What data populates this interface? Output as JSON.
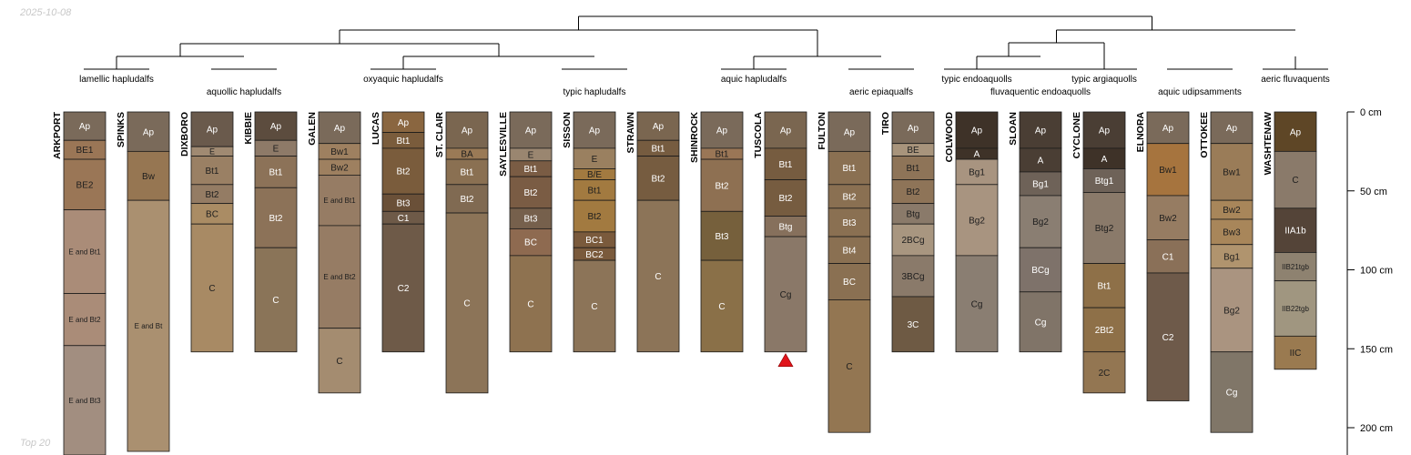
{
  "date_stamp": "2025-10-08",
  "corner_label": "Top 20",
  "axis": {
    "ticks": [
      {
        "depth": 0,
        "label": "0 cm"
      },
      {
        "depth": 50,
        "label": "50 cm"
      },
      {
        "depth": 100,
        "label": "100 cm"
      },
      {
        "depth": 150,
        "label": "150 cm"
      },
      {
        "depth": 200,
        "label": "200 cm"
      }
    ]
  },
  "groups": [
    {
      "label": "lamellic hapludalfs",
      "row": 1,
      "members": [
        "ARKPORT",
        "SPINKS"
      ]
    },
    {
      "label": "aquollic hapludalfs",
      "row": 2,
      "members": [
        "DIXBORO",
        "KIBBIE"
      ]
    },
    {
      "label": "oxyaquic hapludalfs",
      "row": 1,
      "members": [
        "GALEN",
        "LUCAS",
        "ST. CLAIR"
      ]
    },
    {
      "label": "typic hapludalfs",
      "row": 2,
      "members": [
        "SAYLESVILLE",
        "SISSON",
        "STRAWN"
      ]
    },
    {
      "label": "aquic hapludalfs",
      "row": 1,
      "members": [
        "SHINROCK",
        "TUSCOLA"
      ]
    },
    {
      "label": "aeric epiaqualfs",
      "row": 2,
      "members": [
        "FULTON",
        "TIRO"
      ]
    },
    {
      "label": "typic endoaquolls",
      "row": 1,
      "members": [
        "COLWOOD"
      ]
    },
    {
      "label": "fluvaquentic endoaquolls",
      "row": 2,
      "members": [
        "SLOAN"
      ]
    },
    {
      "label": "typic argiaquolls",
      "row": 1,
      "members": [
        "CYCLONE"
      ]
    },
    {
      "label": "aquic udipsamments",
      "row": 2,
      "members": [
        "ELNORA",
        "OTTOKEE"
      ]
    },
    {
      "label": "aeric fluvaquents",
      "row": 1,
      "members": [
        "WASHTENAW"
      ]
    }
  ],
  "profiles": [
    {
      "name": "ARKPORT",
      "horizons": [
        {
          "name": "Ap",
          "top": 0,
          "bottom": 18,
          "color": "#7a6a5a"
        },
        {
          "name": "BE1",
          "top": 18,
          "bottom": 30,
          "color": "#9a7656"
        },
        {
          "name": "BE2",
          "top": 30,
          "bottom": 62,
          "color": "#9a7656"
        },
        {
          "name": "E and Bt1",
          "top": 62,
          "bottom": 115,
          "color": "#aa8c78"
        },
        {
          "name": "E and Bt2",
          "top": 115,
          "bottom": 148,
          "color": "#aa8c78"
        },
        {
          "name": "E and Bt3",
          "top": 148,
          "bottom": 220,
          "color": "#a28e80"
        }
      ]
    },
    {
      "name": "SPINKS",
      "horizons": [
        {
          "name": "Ap",
          "top": 0,
          "bottom": 25,
          "color": "#7a6a5a"
        },
        {
          "name": "Bw",
          "top": 25,
          "bottom": 56,
          "color": "#967652"
        },
        {
          "name": "E and Bt",
          "top": 56,
          "bottom": 215,
          "color": "#aa9070"
        }
      ]
    },
    {
      "name": "DIXBORO",
      "horizons": [
        {
          "name": "Ap",
          "top": 0,
          "bottom": 22,
          "color": "#6a5a4c"
        },
        {
          "name": "E",
          "top": 22,
          "bottom": 28,
          "color": "#a08a72"
        },
        {
          "name": "Bt1",
          "top": 28,
          "bottom": 46,
          "color": "#9a8064"
        },
        {
          "name": "Bt2",
          "top": 46,
          "bottom": 58,
          "color": "#947c64"
        },
        {
          "name": "BC",
          "top": 58,
          "bottom": 71,
          "color": "#aa8c64"
        },
        {
          "name": "C",
          "top": 71,
          "bottom": 152,
          "color": "#a88a64"
        }
      ]
    },
    {
      "name": "KIBBIE",
      "horizons": [
        {
          "name": "Ap",
          "top": 0,
          "bottom": 18,
          "color": "#5c4c3e"
        },
        {
          "name": "E",
          "top": 18,
          "bottom": 28,
          "color": "#8e7a68"
        },
        {
          "name": "Bt1",
          "top": 28,
          "bottom": 48,
          "color": "#8c7258"
        },
        {
          "name": "Bt2",
          "top": 48,
          "bottom": 86,
          "color": "#8c7258"
        },
        {
          "name": "C",
          "top": 86,
          "bottom": 152,
          "color": "#8a7458"
        }
      ]
    },
    {
      "name": "GALEN",
      "horizons": [
        {
          "name": "Ap",
          "top": 0,
          "bottom": 20,
          "color": "#7a6a5a"
        },
        {
          "name": "Bw1",
          "top": 20,
          "bottom": 30,
          "color": "#9e8060"
        },
        {
          "name": "Bw2",
          "top": 30,
          "bottom": 40,
          "color": "#9e8060"
        },
        {
          "name": "E and Bt1",
          "top": 40,
          "bottom": 72,
          "color": "#967c64"
        },
        {
          "name": "E and Bt2",
          "top": 72,
          "bottom": 137,
          "color": "#967c64"
        },
        {
          "name": "C",
          "top": 137,
          "bottom": 178,
          "color": "#a48c70"
        }
      ]
    },
    {
      "name": "LUCAS",
      "horizons": [
        {
          "name": "Ap",
          "top": 0,
          "bottom": 13,
          "color": "#8a6640"
        },
        {
          "name": "Bt1",
          "top": 13,
          "bottom": 23,
          "color": "#7a5c3c"
        },
        {
          "name": "Bt2",
          "top": 23,
          "bottom": 52,
          "color": "#7a5c3c"
        },
        {
          "name": "Bt3",
          "top": 52,
          "bottom": 63,
          "color": "#6a5038"
        },
        {
          "name": "C1",
          "top": 63,
          "bottom": 71,
          "color": "#6e5a48"
        },
        {
          "name": "C2",
          "top": 71,
          "bottom": 152,
          "color": "#6e5a48"
        }
      ]
    },
    {
      "name": "ST. CLAIR",
      "horizons": [
        {
          "name": "Ap",
          "top": 0,
          "bottom": 23,
          "color": "#7a6650"
        },
        {
          "name": "BA",
          "top": 23,
          "bottom": 30,
          "color": "#9a7a56"
        },
        {
          "name": "Bt1",
          "top": 30,
          "bottom": 46,
          "color": "#8a7052"
        },
        {
          "name": "Bt2",
          "top": 46,
          "bottom": 64,
          "color": "#806a52"
        },
        {
          "name": "C",
          "top": 64,
          "bottom": 178,
          "color": "#8c7458"
        }
      ]
    },
    {
      "name": "SAYLESVILLE",
      "horizons": [
        {
          "name": "Ap",
          "top": 0,
          "bottom": 23,
          "color": "#7a6a5a"
        },
        {
          "name": "E",
          "top": 23,
          "bottom": 31,
          "color": "#9a8670"
        },
        {
          "name": "Bt1",
          "top": 31,
          "bottom": 41,
          "color": "#7a5c44"
        },
        {
          "name": "Bt2",
          "top": 41,
          "bottom": 61,
          "color": "#7a5c44"
        },
        {
          "name": "Bt3",
          "top": 61,
          "bottom": 74,
          "color": "#76604c"
        },
        {
          "name": "BC",
          "top": 74,
          "bottom": 91,
          "color": "#8e6a50"
        },
        {
          "name": "C",
          "top": 91,
          "bottom": 152,
          "color": "#8e7250"
        }
      ]
    },
    {
      "name": "SISSON",
      "horizons": [
        {
          "name": "Ap",
          "top": 0,
          "bottom": 23,
          "color": "#7a6a5a"
        },
        {
          "name": "E",
          "top": 23,
          "bottom": 36,
          "color": "#9a8060"
        },
        {
          "name": "B/E",
          "top": 36,
          "bottom": 43,
          "color": "#a27a40"
        },
        {
          "name": "Bt1",
          "top": 43,
          "bottom": 56,
          "color": "#a27a40"
        },
        {
          "name": "Bt2",
          "top": 56,
          "bottom": 76,
          "color": "#a27a40"
        },
        {
          "name": "BC1",
          "top": 76,
          "bottom": 86,
          "color": "#7a5a3c"
        },
        {
          "name": "BC2",
          "top": 86,
          "bottom": 94,
          "color": "#7a5a3c"
        },
        {
          "name": "C",
          "top": 94,
          "bottom": 152,
          "color": "#8c7458"
        }
      ]
    },
    {
      "name": "STRAWN",
      "horizons": [
        {
          "name": "Ap",
          "top": 0,
          "bottom": 18,
          "color": "#7a6650"
        },
        {
          "name": "Bt1",
          "top": 18,
          "bottom": 28,
          "color": "#765c40"
        },
        {
          "name": "Bt2",
          "top": 28,
          "bottom": 56,
          "color": "#765c40"
        },
        {
          "name": "C",
          "top": 56,
          "bottom": 152,
          "color": "#8c7458"
        }
      ]
    },
    {
      "name": "SHINROCK",
      "horizons": [
        {
          "name": "Ap",
          "top": 0,
          "bottom": 23,
          "color": "#7a6a5a"
        },
        {
          "name": "Bt1",
          "top": 23,
          "bottom": 30,
          "color": "#9a7656"
        },
        {
          "name": "Bt2",
          "top": 30,
          "bottom": 63,
          "color": "#8e7052"
        },
        {
          "name": "Bt3",
          "top": 63,
          "bottom": 94,
          "color": "#76603c"
        },
        {
          "name": "C",
          "top": 94,
          "bottom": 152,
          "color": "#8a7048"
        }
      ]
    },
    {
      "name": "TUSCOLA",
      "horizons": [
        {
          "name": "Ap",
          "top": 0,
          "bottom": 23,
          "color": "#7a6650"
        },
        {
          "name": "Bt1",
          "top": 23,
          "bottom": 43,
          "color": "#765c40"
        },
        {
          "name": "Bt2",
          "top": 43,
          "bottom": 66,
          "color": "#765c40"
        },
        {
          "name": "Btg",
          "top": 66,
          "bottom": 79,
          "color": "#86705c"
        },
        {
          "name": "Cg",
          "top": 79,
          "bottom": 152,
          "color": "#8a7868"
        }
      ]
    },
    {
      "name": "FULTON",
      "horizons": [
        {
          "name": "Ap",
          "top": 0,
          "bottom": 25,
          "color": "#7a6a5a"
        },
        {
          "name": "Bt1",
          "top": 25,
          "bottom": 46,
          "color": "#8a7052"
        },
        {
          "name": "Bt2",
          "top": 46,
          "bottom": 61,
          "color": "#8a7052"
        },
        {
          "name": "Bt3",
          "top": 61,
          "bottom": 79,
          "color": "#8a7052"
        },
        {
          "name": "Bt4",
          "top": 79,
          "bottom": 96,
          "color": "#8a7052"
        },
        {
          "name": "BC",
          "top": 96,
          "bottom": 119,
          "color": "#8a7052"
        },
        {
          "name": "C",
          "top": 119,
          "bottom": 203,
          "color": "#937652"
        }
      ]
    },
    {
      "name": "TIRO",
      "horizons": [
        {
          "name": "Ap",
          "top": 0,
          "bottom": 20,
          "color": "#7a6a5a"
        },
        {
          "name": "BE",
          "top": 20,
          "bottom": 28,
          "color": "#a8947c"
        },
        {
          "name": "Bt1",
          "top": 28,
          "bottom": 43,
          "color": "#8e7458"
        },
        {
          "name": "Bt2",
          "top": 43,
          "bottom": 58,
          "color": "#8e7458"
        },
        {
          "name": "Btg",
          "top": 58,
          "bottom": 71,
          "color": "#8a7a6a"
        },
        {
          "name": "2BCg",
          "top": 71,
          "bottom": 91,
          "color": "#a89680"
        },
        {
          "name": "3BCg",
          "top": 91,
          "bottom": 117,
          "color": "#8a7a6a"
        },
        {
          "name": "3C",
          "top": 117,
          "bottom": 152,
          "color": "#6e5a44"
        }
      ]
    },
    {
      "name": "COLWOOD",
      "horizons": [
        {
          "name": "Ap",
          "top": 0,
          "bottom": 23,
          "color": "#3e3228"
        },
        {
          "name": "A",
          "top": 23,
          "bottom": 30,
          "color": "#3e3228"
        },
        {
          "name": "Bg1",
          "top": 30,
          "bottom": 46,
          "color": "#a89480"
        },
        {
          "name": "Bg2",
          "top": 46,
          "bottom": 91,
          "color": "#a89480"
        },
        {
          "name": "Cg",
          "top": 91,
          "bottom": 152,
          "color": "#8a7e72"
        }
      ]
    },
    {
      "name": "SLOAN",
      "horizons": [
        {
          "name": "Ap",
          "top": 0,
          "bottom": 23,
          "color": "#4a3e34"
        },
        {
          "name": "A",
          "top": 23,
          "bottom": 38,
          "color": "#4a3e34"
        },
        {
          "name": "Bg1",
          "top": 38,
          "bottom": 53,
          "color": "#6e6258"
        },
        {
          "name": "Bg2",
          "top": 53,
          "bottom": 86,
          "color": "#8a7e72"
        },
        {
          "name": "BCg",
          "top": 86,
          "bottom": 114,
          "color": "#7e726a"
        },
        {
          "name": "Cg",
          "top": 114,
          "bottom": 152,
          "color": "#807468"
        }
      ]
    },
    {
      "name": "CYCLONE",
      "horizons": [
        {
          "name": "Ap",
          "top": 0,
          "bottom": 23,
          "color": "#4a3e34"
        },
        {
          "name": "A",
          "top": 23,
          "bottom": 36,
          "color": "#3e3228"
        },
        {
          "name": "Btg1",
          "top": 36,
          "bottom": 51,
          "color": "#6e6258"
        },
        {
          "name": "Btg2",
          "top": 51,
          "bottom": 96,
          "color": "#8a7a6a"
        },
        {
          "name": "Bt1",
          "top": 96,
          "bottom": 124,
          "color": "#8e7048"
        },
        {
          "name": "2Bt2",
          "top": 124,
          "bottom": 152,
          "color": "#8e7048"
        },
        {
          "name": "2C",
          "top": 152,
          "bottom": 178,
          "color": "#937652"
        }
      ]
    },
    {
      "name": "ELNORA",
      "horizons": [
        {
          "name": "Ap",
          "top": 0,
          "bottom": 20,
          "color": "#7a6a5a"
        },
        {
          "name": "Bw1",
          "top": 20,
          "bottom": 53,
          "color": "#a6743e"
        },
        {
          "name": "Bw2",
          "top": 53,
          "bottom": 81,
          "color": "#967c62"
        },
        {
          "name": "C1",
          "top": 81,
          "bottom": 102,
          "color": "#8a7058"
        },
        {
          "name": "C2",
          "top": 102,
          "bottom": 183,
          "color": "#6e5a4a"
        }
      ]
    },
    {
      "name": "OTTOKEE",
      "horizons": [
        {
          "name": "Ap",
          "top": 0,
          "bottom": 20,
          "color": "#7a6a5a"
        },
        {
          "name": "Bw1",
          "top": 20,
          "bottom": 56,
          "color": "#9a7c58"
        },
        {
          "name": "Bw2",
          "top": 56,
          "bottom": 68,
          "color": "#a8865a"
        },
        {
          "name": "Bw3",
          "top": 68,
          "bottom": 84,
          "color": "#a8865a"
        },
        {
          "name": "Bg1",
          "top": 84,
          "bottom": 99,
          "color": "#b0946e"
        },
        {
          "name": "Bg2",
          "top": 99,
          "bottom": 152,
          "color": "#aa9480"
        },
        {
          "name": "Cg",
          "top": 152,
          "bottom": 203,
          "color": "#807668"
        }
      ]
    },
    {
      "name": "WASHTENAW",
      "horizons": [
        {
          "name": "Ap",
          "top": 0,
          "bottom": 25,
          "color": "#5e4626"
        },
        {
          "name": "C",
          "top": 25,
          "bottom": 61,
          "color": "#8a7a6a"
        },
        {
          "name": "IIA1b",
          "top": 61,
          "bottom": 89,
          "color": "#544438"
        },
        {
          "name": "IIB21tgb",
          "top": 89,
          "bottom": 107,
          "color": "#8e8270"
        },
        {
          "name": "IIB22tgb",
          "top": 107,
          "bottom": 142,
          "color": "#a09680"
        },
        {
          "name": "IIC",
          "top": 142,
          "bottom": 163,
          "color": "#9a7a50"
        }
      ]
    }
  ],
  "markers": [
    {
      "profile": "TUSCOLA",
      "depth": 152,
      "color": "#e0131a"
    }
  ]
}
